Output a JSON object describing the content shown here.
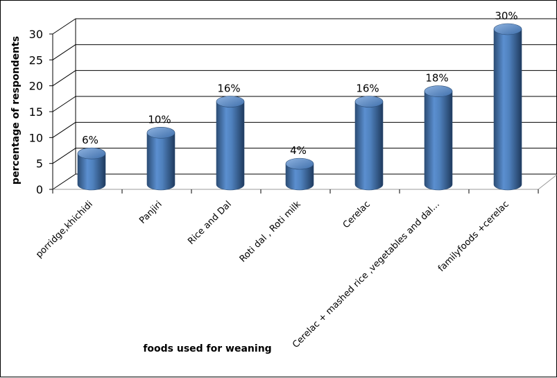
{
  "chart_data": {
    "type": "bar",
    "style": "3d-cylinder",
    "categories": [
      "porridge,khichidi",
      "Panjiri",
      "Rice  and Dal",
      "Roti dal , Roti milk",
      "Cerelac",
      "Cerelac + mashed rice ,vegetables and dal...",
      "familyfoods   +cerelac"
    ],
    "values": [
      6,
      10,
      16,
      4,
      16,
      18,
      30
    ],
    "data_labels": [
      "6%",
      "10%",
      "16%",
      "4%",
      "16%",
      "18%",
      "30%"
    ],
    "xlabel": "foods used for weaning",
    "ylabel": "percentage of respondents",
    "ylim": [
      0,
      30
    ],
    "yticks": [
      0,
      5,
      10,
      15,
      20,
      25,
      30
    ],
    "grid": true,
    "legend": "none",
    "colors": {
      "bar": "#4f81bd",
      "bar_dark": "#2c4d75",
      "bar_top": "#6f9bd1",
      "grid": "#000000"
    }
  }
}
